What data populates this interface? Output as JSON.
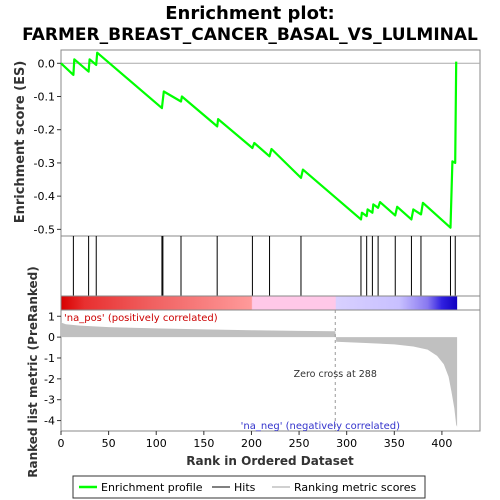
{
  "chart_data": {
    "type": "line",
    "title_line1": "Enrichment plot:",
    "title_line2": "FARMER_BREAST_CANCER_BASAL_VS_LULMINAL",
    "top_panel": {
      "ylabel": "Enrichment score (ES)",
      "ylim": [
        -0.52,
        0.04
      ],
      "yticks": [
        {
          "value": 0.0,
          "label": "0.0"
        },
        {
          "value": -0.1,
          "label": "-0.1"
        },
        {
          "value": -0.2,
          "label": "-0.2"
        },
        {
          "value": -0.3,
          "label": "-0.3"
        },
        {
          "value": -0.4,
          "label": "-0.4"
        },
        {
          "value": -0.5,
          "label": "-0.5"
        }
      ],
      "series_color": "#00ff00",
      "points": [
        [
          0,
          0.0
        ],
        [
          13,
          -0.035
        ],
        [
          14,
          0.012
        ],
        [
          29,
          -0.025
        ],
        [
          30,
          0.012
        ],
        [
          37,
          -0.005
        ],
        [
          38,
          0.032
        ],
        [
          106,
          -0.135
        ],
        [
          108,
          -0.085
        ],
        [
          126,
          -0.115
        ],
        [
          127,
          -0.1
        ],
        [
          164,
          -0.19
        ],
        [
          165,
          -0.168
        ],
        [
          201,
          -0.255
        ],
        [
          203,
          -0.24
        ],
        [
          219,
          -0.28
        ],
        [
          221,
          -0.258
        ],
        [
          252,
          -0.345
        ],
        [
          254,
          -0.32
        ],
        [
          315,
          -0.47
        ],
        [
          316,
          -0.45
        ],
        [
          321,
          -0.46
        ],
        [
          322,
          -0.44
        ],
        [
          327,
          -0.45
        ],
        [
          328,
          -0.425
        ],
        [
          333,
          -0.435
        ],
        [
          335,
          -0.418
        ],
        [
          351,
          -0.458
        ],
        [
          353,
          -0.432
        ],
        [
          368,
          -0.47
        ],
        [
          370,
          -0.44
        ],
        [
          378,
          -0.455
        ],
        [
          380,
          -0.42
        ],
        [
          409,
          -0.495
        ],
        [
          411,
          -0.295
        ],
        [
          414,
          -0.3
        ],
        [
          415,
          0.005
        ]
      ]
    },
    "hits": [
      13,
      29,
      37,
      106,
      107,
      126,
      164,
      201,
      219,
      252,
      315,
      321,
      327,
      333,
      351,
      368,
      378,
      409,
      414
    ],
    "hit_color": "#000000",
    "gradient_bar": {
      "stops": [
        [
          0,
          "#d80000"
        ],
        [
          25,
          "#e83030"
        ],
        [
          95,
          "#f06060"
        ],
        [
          200,
          "#ff9a9a"
        ],
        [
          201,
          "#ffc8e8"
        ],
        [
          288,
          "#ffc8e8"
        ],
        [
          289,
          "#d8d0ff"
        ],
        [
          355,
          "#c8c0ff"
        ],
        [
          385,
          "#8878f0"
        ],
        [
          400,
          "#3020e0"
        ],
        [
          416,
          "#1000c0"
        ]
      ]
    },
    "bottom_panel": {
      "ylabel": "Ranked list metric (PreRanked)",
      "xlabel": "Rank in Ordered Dataset",
      "ylim": [
        -4.5,
        1.3
      ],
      "yticks": [
        {
          "value": 1,
          "label": "1"
        },
        {
          "value": 0,
          "label": "0"
        },
        {
          "value": -1,
          "label": "-1"
        },
        {
          "value": -2,
          "label": "-2"
        },
        {
          "value": -3,
          "label": "-3"
        },
        {
          "value": -4,
          "label": "-4"
        }
      ],
      "metric_profile": [
        [
          0,
          0.7
        ],
        [
          5,
          0.62
        ],
        [
          20,
          0.55
        ],
        [
          50,
          0.48
        ],
        [
          100,
          0.42
        ],
        [
          150,
          0.37
        ],
        [
          200,
          0.33
        ],
        [
          250,
          0.3
        ],
        [
          288,
          0.28
        ],
        [
          289,
          -0.22
        ],
        [
          320,
          -0.28
        ],
        [
          350,
          -0.35
        ],
        [
          370,
          -0.45
        ],
        [
          385,
          -0.6
        ],
        [
          395,
          -0.9
        ],
        [
          402,
          -1.3
        ],
        [
          407,
          -1.9
        ],
        [
          410,
          -2.6
        ],
        [
          413,
          -3.4
        ],
        [
          415,
          -4.2
        ],
        [
          416,
          -4.3
        ]
      ],
      "fill_color": "#c0c0c0",
      "zero_cross_label": "Zero cross at 288",
      "zero_cross_x": 288,
      "pos_label": "'na_pos' (positively correlated)",
      "neg_label": "'na_neg' (negatively correlated)",
      "pos_label_color": "#cc0000",
      "neg_label_color": "#3333cc"
    },
    "xlim": [
      0,
      440
    ],
    "xticks": [
      {
        "value": 0,
        "label": "0"
      },
      {
        "value": 50,
        "label": "50"
      },
      {
        "value": 100,
        "label": "100"
      },
      {
        "value": 150,
        "label": "150"
      },
      {
        "value": 200,
        "label": "200"
      },
      {
        "value": 250,
        "label": "250"
      },
      {
        "value": 300,
        "label": "300"
      },
      {
        "value": 350,
        "label": "350"
      },
      {
        "value": 400,
        "label": "400"
      }
    ],
    "legend": {
      "placement": "bottom",
      "items": [
        {
          "label": "Enrichment profile",
          "color": "#00ff00",
          "kind": "thick-line"
        },
        {
          "label": "Hits",
          "color": "#000000",
          "kind": "thin-line"
        },
        {
          "label": "Ranking metric scores",
          "color": "#c0c0c0",
          "kind": "light-line"
        }
      ]
    }
  }
}
